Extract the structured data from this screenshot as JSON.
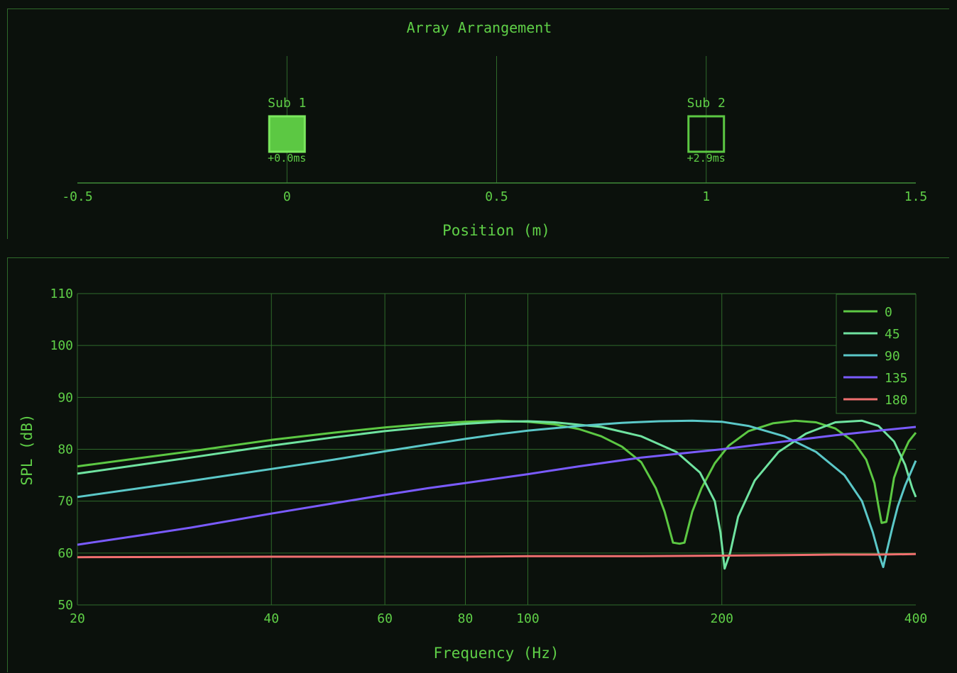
{
  "colors": {
    "background": "#0b110c",
    "text": "#5fcf47",
    "grid": "#2f6b2b",
    "axis": "#3f8a38",
    "sub_fill": "#5cc843",
    "sub_stroke": "#7be85e"
  },
  "chart_data": [
    {
      "type": "scatter",
      "title": "Array Arrangement",
      "xlabel": "Position (m)",
      "ylabel": "",
      "xlim": [
        -0.5,
        1.5
      ],
      "xticks": [
        "-0.5",
        "0",
        "0.5",
        "1",
        "1.5"
      ],
      "grid": true,
      "subs": [
        {
          "name": "Sub 1",
          "x": 0,
          "delay": "+0.0ms",
          "active": true
        },
        {
          "name": "Sub 2",
          "x": 1,
          "delay": "+2.9ms",
          "active": false
        }
      ]
    },
    {
      "type": "line",
      "title": "",
      "xlabel": "Frequency (Hz)",
      "ylabel": "SPL (dB)",
      "xscale": "log",
      "xlim": [
        20,
        400
      ],
      "ylim": [
        50,
        110
      ],
      "xticks": [
        20,
        40,
        60,
        80,
        100,
        200,
        400
      ],
      "yticks": [
        50,
        60,
        70,
        80,
        90,
        100,
        110
      ],
      "grid": true,
      "legend": "top-right",
      "series": [
        {
          "name": "0",
          "color": "#5cc843",
          "points": [
            [
              20,
              76.7
            ],
            [
              25,
              78.3
            ],
            [
              30,
              79.6
            ],
            [
              40,
              81.8
            ],
            [
              50,
              83.2
            ],
            [
              60,
              84.2
            ],
            [
              70,
              84.9
            ],
            [
              80,
              85.3
            ],
            [
              90,
              85.5
            ],
            [
              100,
              85.3
            ],
            [
              110,
              84.8
            ],
            [
              120,
              83.9
            ],
            [
              130,
              82.5
            ],
            [
              140,
              80.5
            ],
            [
              150,
              77.5
            ],
            [
              158,
              72.5
            ],
            [
              163,
              68
            ],
            [
              168,
              62
            ],
            [
              172,
              61.8
            ],
            [
              175,
              62
            ],
            [
              180,
              68
            ],
            [
              186,
              72.5
            ],
            [
              195,
              77.3
            ],
            [
              205,
              80.7
            ],
            [
              220,
              83.5
            ],
            [
              240,
              85
            ],
            [
              260,
              85.5
            ],
            [
              280,
              85.2
            ],
            [
              300,
              84
            ],
            [
              320,
              81.5
            ],
            [
              335,
              78
            ],
            [
              345,
              73.5
            ],
            [
              350,
              69
            ],
            [
              354,
              65.8
            ],
            [
              360,
              66
            ],
            [
              365,
              70
            ],
            [
              370,
              74.5
            ],
            [
              380,
              78.5
            ],
            [
              390,
              81.5
            ],
            [
              400,
              83.2
            ]
          ]
        },
        {
          "name": "45",
          "color": "#6fe3a0",
          "points": [
            [
              20,
              75.3
            ],
            [
              25,
              77
            ],
            [
              30,
              78.4
            ],
            [
              40,
              80.7
            ],
            [
              50,
              82.3
            ],
            [
              60,
              83.5
            ],
            [
              70,
              84.3
            ],
            [
              80,
              84.9
            ],
            [
              90,
              85.3
            ],
            [
              100,
              85.4
            ],
            [
              110,
              85.2
            ],
            [
              130,
              84.3
            ],
            [
              150,
              82.5
            ],
            [
              170,
              79.5
            ],
            [
              185,
              75.5
            ],
            [
              195,
              70
            ],
            [
              199,
              64
            ],
            [
              202,
              57
            ],
            [
              206,
              60
            ],
            [
              212,
              67
            ],
            [
              225,
              74
            ],
            [
              245,
              79.5
            ],
            [
              270,
              83
            ],
            [
              300,
              85.2
            ],
            [
              330,
              85.5
            ],
            [
              350,
              84.5
            ],
            [
              370,
              81.5
            ],
            [
              385,
              77
            ],
            [
              395,
              72.5
            ],
            [
              400,
              70.8
            ]
          ]
        },
        {
          "name": "90",
          "color": "#5bc8c8",
          "points": [
            [
              20,
              70.8
            ],
            [
              25,
              72.5
            ],
            [
              30,
              73.9
            ],
            [
              40,
              76.2
            ],
            [
              50,
              78
            ],
            [
              60,
              79.6
            ],
            [
              70,
              80.9
            ],
            [
              80,
              82
            ],
            [
              90,
              82.9
            ],
            [
              100,
              83.6
            ],
            [
              120,
              84.5
            ],
            [
              140,
              85.1
            ],
            [
              160,
              85.4
            ],
            [
              180,
              85.5
            ],
            [
              200,
              85.3
            ],
            [
              220,
              84.5
            ],
            [
              250,
              82.5
            ],
            [
              280,
              79.5
            ],
            [
              310,
              75
            ],
            [
              330,
              70
            ],
            [
              343,
              64
            ],
            [
              350,
              60
            ],
            [
              356,
              57.3
            ],
            [
              360,
              60
            ],
            [
              368,
              65
            ],
            [
              375,
              69
            ],
            [
              385,
              73
            ],
            [
              400,
              77.8
            ]
          ]
        },
        {
          "name": "135",
          "color": "#7a5bff",
          "points": [
            [
              20,
              61.6
            ],
            [
              25,
              63.4
            ],
            [
              30,
              64.9
            ],
            [
              40,
              67.6
            ],
            [
              50,
              69.6
            ],
            [
              60,
              71.2
            ],
            [
              70,
              72.5
            ],
            [
              80,
              73.5
            ],
            [
              90,
              74.4
            ],
            [
              100,
              75.2
            ],
            [
              120,
              76.7
            ],
            [
              150,
              78.4
            ],
            [
              200,
              80
            ],
            [
              250,
              81.5
            ],
            [
              300,
              82.7
            ],
            [
              350,
              83.6
            ],
            [
              400,
              84.3
            ]
          ]
        },
        {
          "name": "180",
          "color": "#ef6f6f",
          "points": [
            [
              20,
              59.2
            ],
            [
              40,
              59.3
            ],
            [
              60,
              59.3
            ],
            [
              80,
              59.3
            ],
            [
              100,
              59.4
            ],
            [
              150,
              59.4
            ],
            [
              200,
              59.5
            ],
            [
              250,
              59.6
            ],
            [
              300,
              59.7
            ],
            [
              350,
              59.7
            ],
            [
              400,
              59.8
            ]
          ]
        }
      ]
    }
  ]
}
